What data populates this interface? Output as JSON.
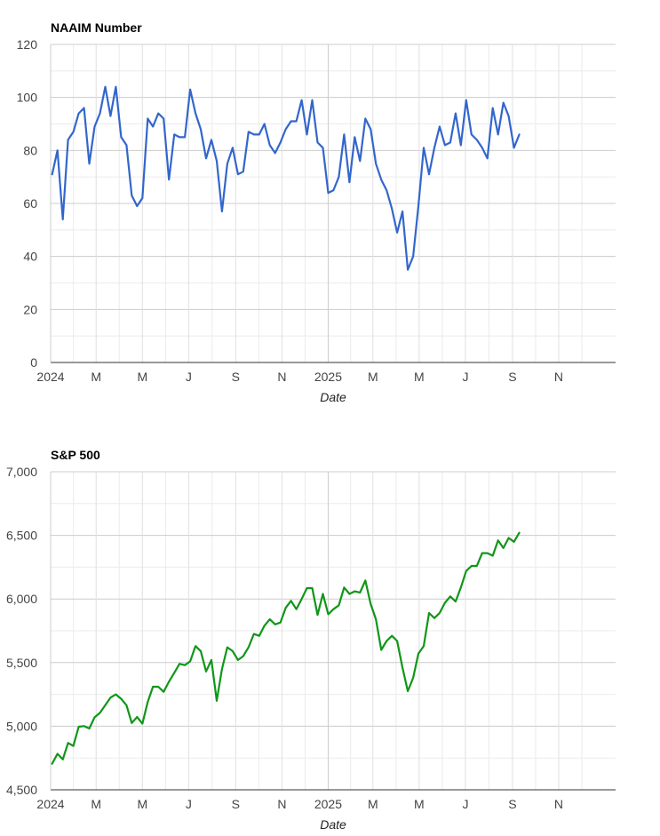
{
  "chart_data": [
    {
      "type": "line",
      "title": "NAAIM Number",
      "xlabel": "Date",
      "ylabel": "",
      "ylim": [
        0,
        120
      ],
      "y_ticks": [
        "0",
        "20",
        "40",
        "60",
        "80",
        "100",
        "120"
      ],
      "x_ticks": [
        "2024",
        "M",
        "M",
        "J",
        "S",
        "N",
        "2025",
        "M",
        "M",
        "J",
        "S",
        "N"
      ],
      "grid": true,
      "color": "#3366cc",
      "series": [
        {
          "values": [
            [
              "2024-01-03",
              71
            ],
            [
              "2024-01-10",
              80
            ],
            [
              "2024-01-17",
              54
            ],
            [
              "2024-01-24",
              84
            ],
            [
              "2024-01-31",
              87
            ],
            [
              "2024-02-07",
              94
            ],
            [
              "2024-02-14",
              96
            ],
            [
              "2024-02-21",
              75
            ],
            [
              "2024-02-28",
              89
            ],
            [
              "2024-03-06",
              94
            ],
            [
              "2024-03-13",
              104
            ],
            [
              "2024-03-20",
              93
            ],
            [
              "2024-03-27",
              104
            ],
            [
              "2024-04-03",
              85
            ],
            [
              "2024-04-10",
              82
            ],
            [
              "2024-04-17",
              63
            ],
            [
              "2024-04-24",
              59
            ],
            [
              "2024-05-01",
              62
            ],
            [
              "2024-05-08",
              92
            ],
            [
              "2024-05-15",
              89
            ],
            [
              "2024-05-22",
              94
            ],
            [
              "2024-05-29",
              92
            ],
            [
              "2024-06-05",
              69
            ],
            [
              "2024-06-12",
              86
            ],
            [
              "2024-06-19",
              85
            ],
            [
              "2024-06-26",
              85
            ],
            [
              "2024-07-03",
              103
            ],
            [
              "2024-07-10",
              94
            ],
            [
              "2024-07-17",
              88
            ],
            [
              "2024-07-24",
              77
            ],
            [
              "2024-07-31",
              84
            ],
            [
              "2024-08-07",
              76
            ],
            [
              "2024-08-14",
              57
            ],
            [
              "2024-08-21",
              75
            ],
            [
              "2024-08-28",
              81
            ],
            [
              "2024-09-04",
              71
            ],
            [
              "2024-09-11",
              72
            ],
            [
              "2024-09-18",
              87
            ],
            [
              "2024-09-25",
              86
            ],
            [
              "2024-10-02",
              86
            ],
            [
              "2024-10-09",
              90
            ],
            [
              "2024-10-16",
              82
            ],
            [
              "2024-10-23",
              79
            ],
            [
              "2024-10-30",
              83
            ],
            [
              "2024-11-06",
              88
            ],
            [
              "2024-11-13",
              91
            ],
            [
              "2024-11-20",
              91
            ],
            [
              "2024-11-27",
              99
            ],
            [
              "2024-12-04",
              86
            ],
            [
              "2024-12-11",
              99
            ],
            [
              "2024-12-18",
              83
            ],
            [
              "2024-12-25",
              81
            ],
            [
              "2025-01-01",
              64
            ],
            [
              "2025-01-08",
              65
            ],
            [
              "2025-01-15",
              70
            ],
            [
              "2025-01-22",
              86
            ],
            [
              "2025-01-29",
              68
            ],
            [
              "2025-02-05",
              85
            ],
            [
              "2025-02-12",
              76
            ],
            [
              "2025-02-19",
              92
            ],
            [
              "2025-02-26",
              88
            ],
            [
              "2025-03-05",
              75
            ],
            [
              "2025-03-12",
              69
            ],
            [
              "2025-03-19",
              65
            ],
            [
              "2025-03-26",
              58
            ],
            [
              "2025-04-02",
              49
            ],
            [
              "2025-04-09",
              57
            ],
            [
              "2025-04-16",
              35
            ],
            [
              "2025-04-23",
              40
            ],
            [
              "2025-04-30",
              59
            ],
            [
              "2025-05-07",
              81
            ],
            [
              "2025-05-14",
              71
            ],
            [
              "2025-05-21",
              81
            ],
            [
              "2025-05-28",
              89
            ],
            [
              "2025-06-04",
              82
            ],
            [
              "2025-06-11",
              83
            ],
            [
              "2025-06-18",
              94
            ],
            [
              "2025-06-25",
              82
            ],
            [
              "2025-07-02",
              99
            ],
            [
              "2025-07-09",
              86
            ],
            [
              "2025-07-16",
              84
            ],
            [
              "2025-07-23",
              81
            ],
            [
              "2025-07-30",
              77
            ],
            [
              "2025-08-06",
              96
            ],
            [
              "2025-08-13",
              86
            ],
            [
              "2025-08-20",
              98
            ],
            [
              "2025-08-27",
              93
            ],
            [
              "2025-09-03",
              81
            ],
            [
              "2025-09-10",
              86
            ]
          ]
        }
      ]
    },
    {
      "type": "line",
      "title": "S&P 500",
      "xlabel": "Date",
      "ylabel": "",
      "ylim": [
        4500,
        7000
      ],
      "y_ticks": [
        "4,500",
        "5,000",
        "5,500",
        "6,000",
        "6,500",
        "7,000"
      ],
      "x_ticks": [
        "2024",
        "M",
        "M",
        "J",
        "S",
        "N",
        "2025",
        "M",
        "M",
        "J",
        "S",
        "N"
      ],
      "grid": true,
      "color": "#109618",
      "series": [
        {
          "values": [
            [
              "2024-01-03",
              4705
            ],
            [
              "2024-01-10",
              4783
            ],
            [
              "2024-01-17",
              4739
            ],
            [
              "2024-01-24",
              4868
            ],
            [
              "2024-01-31",
              4845
            ],
            [
              "2024-02-07",
              4996
            ],
            [
              "2024-02-14",
              5001
            ],
            [
              "2024-02-21",
              4982
            ],
            [
              "2024-02-28",
              5070
            ],
            [
              "2024-03-06",
              5105
            ],
            [
              "2024-03-13",
              5165
            ],
            [
              "2024-03-20",
              5225
            ],
            [
              "2024-03-27",
              5250
            ],
            [
              "2024-04-03",
              5215
            ],
            [
              "2024-04-10",
              5165
            ],
            [
              "2024-04-17",
              5025
            ],
            [
              "2024-04-24",
              5072
            ],
            [
              "2024-05-01",
              5020
            ],
            [
              "2024-05-08",
              5190
            ],
            [
              "2024-05-15",
              5310
            ],
            [
              "2024-05-22",
              5310
            ],
            [
              "2024-05-29",
              5270
            ],
            [
              "2024-06-05",
              5350
            ],
            [
              "2024-06-12",
              5420
            ],
            [
              "2024-06-19",
              5490
            ],
            [
              "2024-06-26",
              5480
            ],
            [
              "2024-07-03",
              5510
            ],
            [
              "2024-07-10",
              5630
            ],
            [
              "2024-07-17",
              5590
            ],
            [
              "2024-07-24",
              5430
            ],
            [
              "2024-07-31",
              5520
            ],
            [
              "2024-08-07",
              5200
            ],
            [
              "2024-08-14",
              5450
            ],
            [
              "2024-08-21",
              5620
            ],
            [
              "2024-08-28",
              5590
            ],
            [
              "2024-09-04",
              5520
            ],
            [
              "2024-09-11",
              5550
            ],
            [
              "2024-09-18",
              5620
            ],
            [
              "2024-09-25",
              5725
            ],
            [
              "2024-10-02",
              5710
            ],
            [
              "2024-10-09",
              5790
            ],
            [
              "2024-10-16",
              5840
            ],
            [
              "2024-10-23",
              5800
            ],
            [
              "2024-10-30",
              5815
            ],
            [
              "2024-11-06",
              5930
            ],
            [
              "2024-11-13",
              5985
            ],
            [
              "2024-11-20",
              5920
            ],
            [
              "2024-11-27",
              6000
            ],
            [
              "2024-12-04",
              6085
            ],
            [
              "2024-12-11",
              6085
            ],
            [
              "2024-12-18",
              5875
            ],
            [
              "2024-12-25",
              6040
            ],
            [
              "2025-01-01",
              5880
            ],
            [
              "2025-01-08",
              5920
            ],
            [
              "2025-01-15",
              5950
            ],
            [
              "2025-01-22",
              6090
            ],
            [
              "2025-01-29",
              6040
            ],
            [
              "2025-02-05",
              6060
            ],
            [
              "2025-02-12",
              6050
            ],
            [
              "2025-02-19",
              6145
            ],
            [
              "2025-02-26",
              5960
            ],
            [
              "2025-03-05",
              5840
            ],
            [
              "2025-03-12",
              5600
            ],
            [
              "2025-03-19",
              5670
            ],
            [
              "2025-03-26",
              5710
            ],
            [
              "2025-04-02",
              5670
            ],
            [
              "2025-04-09",
              5460
            ],
            [
              "2025-04-16",
              5275
            ],
            [
              "2025-04-23",
              5380
            ],
            [
              "2025-04-30",
              5570
            ],
            [
              "2025-05-07",
              5630
            ],
            [
              "2025-05-14",
              5890
            ],
            [
              "2025-05-21",
              5850
            ],
            [
              "2025-05-28",
              5890
            ],
            [
              "2025-06-04",
              5970
            ],
            [
              "2025-06-11",
              6020
            ],
            [
              "2025-06-18",
              5980
            ],
            [
              "2025-06-25",
              6090
            ],
            [
              "2025-07-02",
              6220
            ],
            [
              "2025-07-09",
              6260
            ],
            [
              "2025-07-16",
              6260
            ],
            [
              "2025-07-23",
              6360
            ],
            [
              "2025-07-30",
              6360
            ],
            [
              "2025-08-06",
              6340
            ],
            [
              "2025-08-13",
              6460
            ],
            [
              "2025-08-20",
              6400
            ],
            [
              "2025-08-27",
              6480
            ],
            [
              "2025-09-03",
              6450
            ],
            [
              "2025-09-10",
              6520
            ]
          ]
        }
      ]
    }
  ]
}
